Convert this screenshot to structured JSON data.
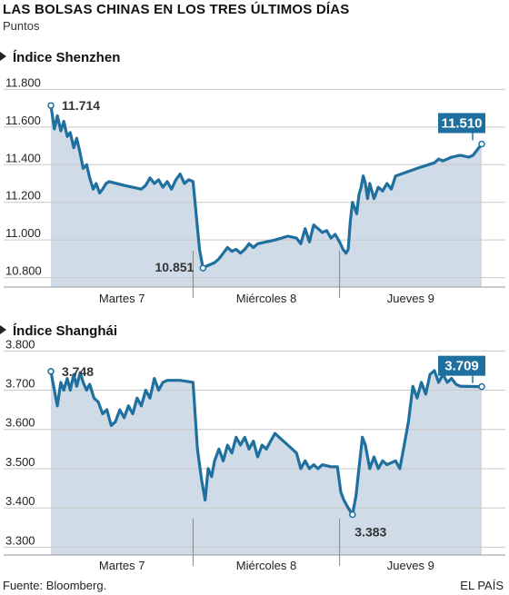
{
  "title": "LAS BOLSAS CHINAS EN LOS TRES ÚLTIMOS DÍAS",
  "subtitle": "Puntos",
  "source": "Fuente: Bloomberg.",
  "credit": "EL PAÍS",
  "colors": {
    "line": "#1f6f9f",
    "area": "#cfdbe7",
    "grid": "#c8c8c8",
    "label_box": "#1f6f9f"
  },
  "chart_data": [
    {
      "type": "area",
      "title": "Índice Shenzhen",
      "ylim": [
        10750,
        11850
      ],
      "yticks": [
        10800,
        11000,
        11200,
        11400,
        11600,
        11800
      ],
      "ytick_labels": [
        "10.800",
        "11.000",
        "11.200",
        "11.400",
        "11.600",
        "11.800"
      ],
      "xlim": [
        0,
        100
      ],
      "x_categories": [
        "Martes 7",
        "Miércoles 8",
        "Jueves 9"
      ],
      "day_boundaries": [
        33,
        67
      ],
      "points": [
        [
          0,
          11714
        ],
        [
          0.8,
          11590
        ],
        [
          1.5,
          11660
        ],
        [
          2.3,
          11580
        ],
        [
          3,
          11630
        ],
        [
          3.8,
          11550
        ],
        [
          4.5,
          11570
        ],
        [
          5.3,
          11490
        ],
        [
          6,
          11540
        ],
        [
          6.8,
          11460
        ],
        [
          7.5,
          11380
        ],
        [
          8.3,
          11400
        ],
        [
          9,
          11330
        ],
        [
          9.8,
          11270
        ],
        [
          10.5,
          11300
        ],
        [
          11.3,
          11250
        ],
        [
          12,
          11270
        ],
        [
          12.8,
          11300
        ],
        [
          13.5,
          11310
        ],
        [
          17,
          11290
        ],
        [
          21,
          11270
        ],
        [
          22,
          11290
        ],
        [
          23,
          11330
        ],
        [
          24,
          11300
        ],
        [
          25,
          11320
        ],
        [
          26,
          11280
        ],
        [
          27,
          11310
        ],
        [
          28,
          11270
        ],
        [
          29,
          11320
        ],
        [
          30,
          11350
        ],
        [
          31,
          11300
        ],
        [
          32,
          11320
        ],
        [
          33,
          11310
        ],
        [
          34.5,
          10950
        ],
        [
          35.3,
          10851
        ],
        [
          36,
          10860
        ],
        [
          37,
          10870
        ],
        [
          38,
          10880
        ],
        [
          39,
          10900
        ],
        [
          40,
          10930
        ],
        [
          41,
          10960
        ],
        [
          42,
          10940
        ],
        [
          43,
          10950
        ],
        [
          44,
          10930
        ],
        [
          45,
          10950
        ],
        [
          46,
          10980
        ],
        [
          47,
          10960
        ],
        [
          48,
          10980
        ],
        [
          52,
          11000
        ],
        [
          55,
          11020
        ],
        [
          57,
          11010
        ],
        [
          58,
          10980
        ],
        [
          59,
          11060
        ],
        [
          60,
          10990
        ],
        [
          61,
          11080
        ],
        [
          62,
          11060
        ],
        [
          63,
          11040
        ],
        [
          64,
          11050
        ],
        [
          65,
          11010
        ],
        [
          66,
          11030
        ],
        [
          67,
          10990
        ],
        [
          67.8,
          10950
        ],
        [
          68.5,
          10930
        ],
        [
          69,
          10950
        ],
        [
          69.5,
          11100
        ],
        [
          70,
          11200
        ],
        [
          71,
          11140
        ],
        [
          71.5,
          11240
        ],
        [
          72,
          11280
        ],
        [
          72.5,
          11340
        ],
        [
          73,
          11300
        ],
        [
          73.5,
          11220
        ],
        [
          74,
          11300
        ],
        [
          75,
          11220
        ],
        [
          76,
          11280
        ],
        [
          77,
          11260
        ],
        [
          78,
          11300
        ],
        [
          79,
          11270
        ],
        [
          80,
          11340
        ],
        [
          85,
          11380
        ],
        [
          89,
          11410
        ],
        [
          90,
          11430
        ],
        [
          91,
          11420
        ],
        [
          93,
          11440
        ],
        [
          95,
          11450
        ],
        [
          97,
          11440
        ],
        [
          98,
          11450
        ],
        [
          100,
          11510
        ]
      ],
      "annotations": [
        {
          "label": "11.714",
          "x": 0,
          "y": 11714,
          "style": "plain",
          "position": "right"
        },
        {
          "label": "10.851",
          "x": 35.3,
          "y": 10851,
          "style": "plain",
          "position": "left"
        },
        {
          "label": "11.510",
          "x": 100,
          "y": 11510,
          "style": "boxed",
          "position": "above-left"
        }
      ]
    },
    {
      "type": "area",
      "title": "Índice Shanghái",
      "ylim": [
        3280,
        3810
      ],
      "yticks": [
        3300,
        3400,
        3500,
        3600,
        3700,
        3800
      ],
      "ytick_labels": [
        "3.300",
        "3.400",
        "3.500",
        "3.600",
        "3.700",
        "3.800"
      ],
      "xlim": [
        0,
        100
      ],
      "x_categories": [
        "Martes 7",
        "Miércoles 8",
        "Jueves 9"
      ],
      "day_boundaries": [
        33,
        67
      ],
      "points": [
        [
          0,
          3748
        ],
        [
          0.8,
          3700
        ],
        [
          1.5,
          3660
        ],
        [
          2.3,
          3720
        ],
        [
          3,
          3700
        ],
        [
          3.8,
          3730
        ],
        [
          4.5,
          3700
        ],
        [
          5.3,
          3740
        ],
        [
          6,
          3710
        ],
        [
          6.8,
          3745
        ],
        [
          7.5,
          3720
        ],
        [
          8.3,
          3700
        ],
        [
          9,
          3715
        ],
        [
          10,
          3680
        ],
        [
          11,
          3670
        ],
        [
          12,
          3640
        ],
        [
          13,
          3650
        ],
        [
          14,
          3610
        ],
        [
          15,
          3620
        ],
        [
          16,
          3650
        ],
        [
          17,
          3630
        ],
        [
          18,
          3660
        ],
        [
          19,
          3640
        ],
        [
          20,
          3680
        ],
        [
          21,
          3660
        ],
        [
          22,
          3700
        ],
        [
          23,
          3680
        ],
        [
          24,
          3730
        ],
        [
          25,
          3700
        ],
        [
          26,
          3720
        ],
        [
          27,
          3725
        ],
        [
          30,
          3725
        ],
        [
          33,
          3720
        ],
        [
          34,
          3550
        ],
        [
          35,
          3470
        ],
        [
          35.8,
          3420
        ],
        [
          36.5,
          3500
        ],
        [
          37.3,
          3480
        ],
        [
          38,
          3520
        ],
        [
          39,
          3550
        ],
        [
          40,
          3520
        ],
        [
          41,
          3560
        ],
        [
          42,
          3540
        ],
        [
          43,
          3580
        ],
        [
          44,
          3560
        ],
        [
          45,
          3580
        ],
        [
          46,
          3550
        ],
        [
          47,
          3570
        ],
        [
          48,
          3530
        ],
        [
          49,
          3560
        ],
        [
          50,
          3550
        ],
        [
          51,
          3570
        ],
        [
          52,
          3590
        ],
        [
          53,
          3580
        ],
        [
          55,
          3560
        ],
        [
          57,
          3540
        ],
        [
          58,
          3500
        ],
        [
          59,
          3520
        ],
        [
          60,
          3500
        ],
        [
          61,
          3510
        ],
        [
          62,
          3500
        ],
        [
          63,
          3510
        ],
        [
          65,
          3505
        ],
        [
          66.5,
          3505
        ],
        [
          67.3,
          3440
        ],
        [
          68,
          3420
        ],
        [
          69,
          3400
        ],
        [
          70,
          3383
        ],
        [
          70.8,
          3430
        ],
        [
          71.5,
          3500
        ],
        [
          72.3,
          3580
        ],
        [
          73,
          3560
        ],
        [
          74,
          3500
        ],
        [
          75,
          3530
        ],
        [
          76,
          3500
        ],
        [
          77,
          3520
        ],
        [
          78,
          3510
        ],
        [
          80,
          3520
        ],
        [
          81,
          3500
        ],
        [
          82,
          3560
        ],
        [
          83,
          3620
        ],
        [
          84,
          3710
        ],
        [
          85,
          3680
        ],
        [
          86,
          3720
        ],
        [
          87,
          3690
        ],
        [
          88,
          3740
        ],
        [
          89,
          3750
        ],
        [
          90,
          3720
        ],
        [
          91,
          3740
        ],
        [
          92,
          3720
        ],
        [
          93,
          3730
        ],
        [
          94,
          3715
        ],
        [
          95,
          3710
        ],
        [
          100,
          3709
        ]
      ],
      "annotations": [
        {
          "label": "3.748",
          "x": 0,
          "y": 3748,
          "style": "plain",
          "position": "right"
        },
        {
          "label": "3.383",
          "x": 70,
          "y": 3383,
          "style": "plain",
          "position": "below"
        },
        {
          "label": "3.709",
          "x": 100,
          "y": 3709,
          "style": "boxed",
          "position": "above-left"
        }
      ]
    }
  ]
}
